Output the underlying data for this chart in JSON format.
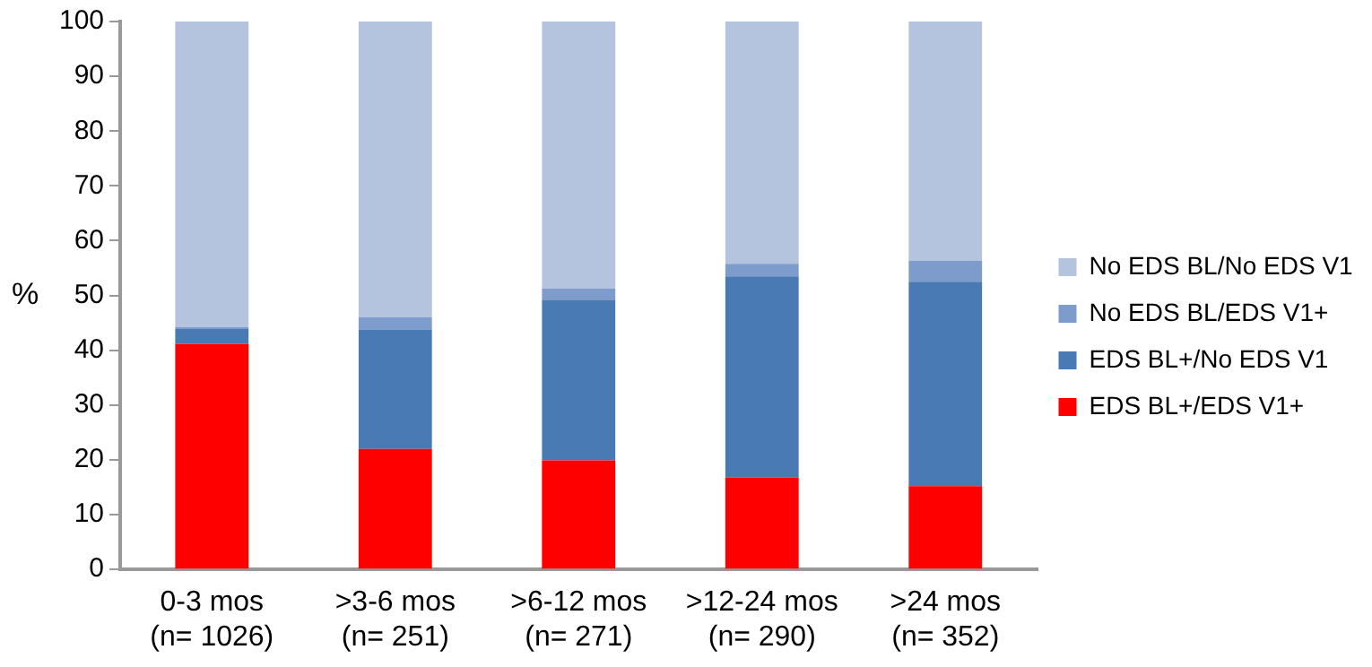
{
  "chart_data": {
    "type": "bar",
    "stacked": true,
    "ylabel": "%",
    "categories": [
      "0-3 mos\n(n= 1026)",
      ">3-6 mos\n(n= 251)",
      ">6-12 mos\n(n= 271)",
      ">12-24 mos\n(n= 290)",
      ">24 mos\n(n= 352)"
    ],
    "series": [
      {
        "name": "EDS BL+/EDS V1+",
        "color": "#ff0000",
        "values": [
          41.2,
          22.0,
          19.9,
          16.8,
          15.2
        ]
      },
      {
        "name": "EDS BL+/No EDS V1",
        "color": "#4a7ab4",
        "values": [
          2.7,
          21.8,
          29.2,
          36.7,
          37.3
        ]
      },
      {
        "name": "No EDS BL/EDS V1+",
        "color": "#7e9ccb",
        "values": [
          0.3,
          2.2,
          2.2,
          2.3,
          3.8
        ]
      },
      {
        "name": "No EDS BL/No EDS V1",
        "color": "#b4c3de",
        "values": [
          55.8,
          54.0,
          48.7,
          44.2,
          43.7
        ]
      }
    ],
    "ylim": [
      0,
      100
    ],
    "yticks": [
      0,
      10,
      20,
      30,
      40,
      50,
      60,
      70,
      80,
      90,
      100
    ],
    "grid": false,
    "legend": "right"
  }
}
